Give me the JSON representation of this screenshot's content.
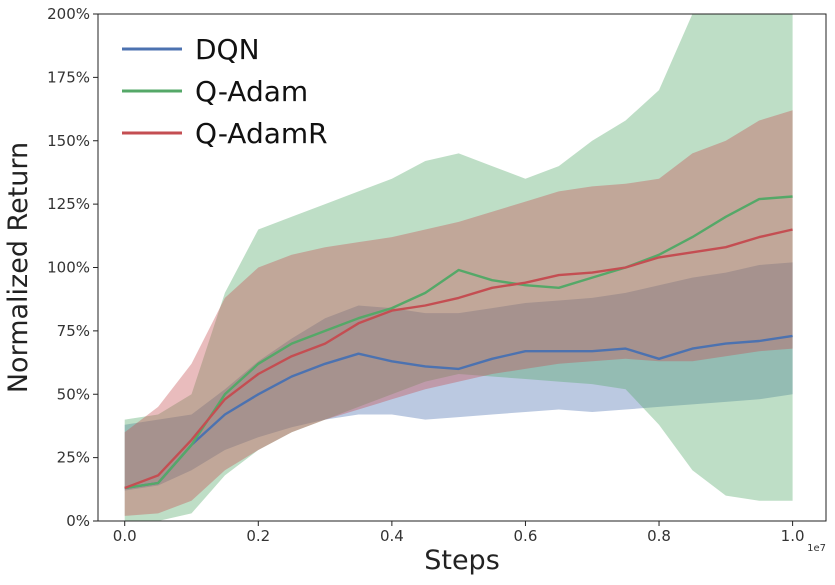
{
  "chart_data": {
    "type": "line",
    "title": "",
    "xlabel": "Steps",
    "ylabel": "Normalized Return",
    "x_offset_label": "1e7",
    "xlim": [
      -0.04,
      1.05
    ],
    "ylim": [
      0,
      200
    ],
    "xticks": [
      0.0,
      0.2,
      0.4,
      0.6,
      0.8,
      1.0
    ],
    "xtick_labels": [
      "0.0",
      "0.2",
      "0.4",
      "0.6",
      "0.8",
      "1.0"
    ],
    "yticks": [
      0,
      25,
      50,
      75,
      100,
      125,
      150,
      175,
      200
    ],
    "ytick_labels": [
      "0%",
      "25%",
      "50%",
      "75%",
      "100%",
      "125%",
      "150%",
      "175%",
      "200%"
    ],
    "legend_position": "top-left",
    "series": [
      {
        "name": "DQN",
        "color": "#4c72b0",
        "x": [
          0.0,
          0.05,
          0.1,
          0.15,
          0.2,
          0.25,
          0.3,
          0.35,
          0.4,
          0.45,
          0.5,
          0.55,
          0.6,
          0.65,
          0.7,
          0.75,
          0.8,
          0.85,
          0.9,
          0.95,
          1.0
        ],
        "y": [
          13,
          15,
          30,
          42,
          50,
          57,
          62,
          66,
          63,
          61,
          60,
          64,
          67,
          67,
          67,
          68,
          64,
          68,
          70,
          71,
          73
        ],
        "lower": [
          12,
          14,
          20,
          28,
          33,
          37,
          40,
          42,
          42,
          40,
          41,
          42,
          43,
          44,
          43,
          44,
          45,
          46,
          47,
          48,
          50
        ],
        "upper": [
          38,
          40,
          42,
          52,
          63,
          72,
          80,
          85,
          84,
          82,
          82,
          84,
          86,
          87,
          88,
          90,
          93,
          96,
          98,
          101,
          102
        ]
      },
      {
        "name": "Q-Adam",
        "color": "#55a868",
        "x": [
          0.0,
          0.05,
          0.1,
          0.15,
          0.2,
          0.25,
          0.3,
          0.35,
          0.4,
          0.45,
          0.5,
          0.55,
          0.6,
          0.65,
          0.7,
          0.75,
          0.8,
          0.85,
          0.9,
          0.95,
          1.0
        ],
        "y": [
          13,
          15,
          30,
          50,
          62,
          70,
          75,
          80,
          84,
          90,
          99,
          95,
          93,
          92,
          96,
          100,
          105,
          112,
          120,
          127,
          128
        ],
        "lower": [
          0,
          0,
          3,
          18,
          28,
          35,
          40,
          45,
          50,
          55,
          58,
          57,
          56,
          55,
          54,
          52,
          38,
          20,
          10,
          8,
          8
        ],
        "upper": [
          40,
          42,
          50,
          90,
          115,
          120,
          125,
          130,
          135,
          142,
          145,
          140,
          135,
          140,
          150,
          158,
          170,
          200,
          200,
          200,
          200
        ]
      },
      {
        "name": "Q-AdamR",
        "color": "#c44e52",
        "x": [
          0.0,
          0.05,
          0.1,
          0.15,
          0.2,
          0.25,
          0.3,
          0.35,
          0.4,
          0.45,
          0.5,
          0.55,
          0.6,
          0.65,
          0.7,
          0.75,
          0.8,
          0.85,
          0.9,
          0.95,
          1.0
        ],
        "y": [
          13,
          18,
          32,
          48,
          58,
          65,
          70,
          78,
          83,
          85,
          88,
          92,
          94,
          97,
          98,
          100,
          104,
          106,
          108,
          112,
          115
        ],
        "lower": [
          2,
          3,
          8,
          20,
          28,
          35,
          40,
          44,
          48,
          52,
          55,
          58,
          60,
          62,
          63,
          64,
          63,
          63,
          65,
          67,
          68
        ],
        "upper": [
          35,
          45,
          62,
          88,
          100,
          105,
          108,
          110,
          112,
          115,
          118,
          122,
          126,
          130,
          132,
          133,
          135,
          145,
          150,
          158,
          162
        ]
      }
    ]
  }
}
